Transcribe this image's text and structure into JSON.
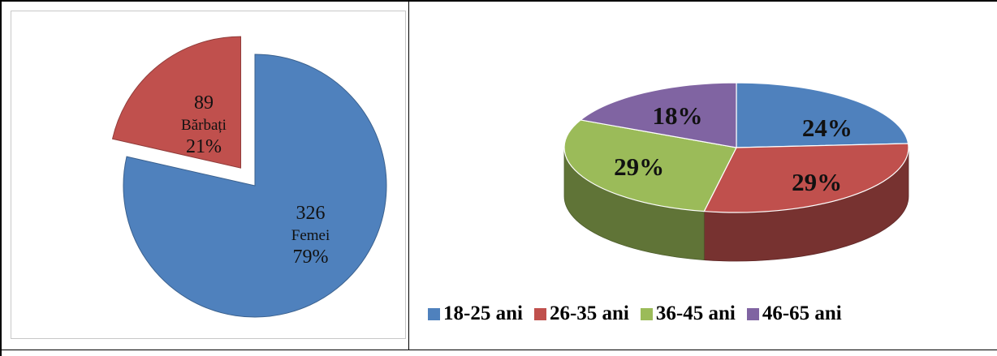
{
  "chart_data": [
    {
      "type": "pie",
      "title": "",
      "slices": [
        {
          "name": "Femei",
          "value": 326,
          "percent_label": "79%",
          "count_label": "326",
          "color": "#4f81bd",
          "exploded": false
        },
        {
          "name": "Bărbați",
          "value": 89,
          "percent_label": "21%",
          "count_label": "89",
          "color": "#c0504d",
          "exploded": true
        }
      ]
    },
    {
      "type": "pie",
      "title": "",
      "style": "3d",
      "legend_position": "bottom",
      "slices": [
        {
          "name": "18-25 ani",
          "value": 24,
          "label": "24%",
          "color": "#4f81bd"
        },
        {
          "name": "26-35 ani",
          "value": 29,
          "label": "29%",
          "color": "#c0504d"
        },
        {
          "name": "36-45 ani",
          "value": 29,
          "label": "29%",
          "color": "#9bbb59"
        },
        {
          "name": "46-65 ani",
          "value": 18,
          "label": "18%",
          "color": "#8064a2"
        }
      ]
    }
  ]
}
